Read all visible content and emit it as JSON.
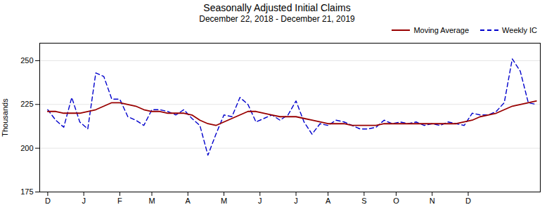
{
  "chart_data": {
    "type": "line",
    "title": "Seasonally Adjusted Initial Claims",
    "subtitle": "December 22, 2018 - December 21, 2019",
    "ylabel": "Thousands",
    "x": [
      0,
      1,
      2,
      3,
      4,
      5,
      6,
      7,
      8,
      9,
      10,
      11,
      12,
      13,
      14,
      15,
      16,
      17,
      18,
      19,
      20,
      21,
      22,
      23,
      24,
      25,
      26,
      27,
      28,
      29,
      30,
      31,
      32,
      33,
      34,
      35,
      36,
      37,
      38,
      39,
      40,
      41,
      42,
      43,
      44,
      45,
      46,
      47,
      48,
      49,
      50,
      51,
      52,
      53,
      54,
      55,
      56,
      57,
      58,
      59,
      60,
      61
    ],
    "xlim": [
      -1,
      61.5
    ],
    "xticks": [
      {
        "value": 0,
        "label": "D"
      },
      {
        "value": 4.5,
        "label": "J"
      },
      {
        "value": 9,
        "label": "F"
      },
      {
        "value": 13,
        "label": "M"
      },
      {
        "value": 17.5,
        "label": "A"
      },
      {
        "value": 22,
        "label": "M"
      },
      {
        "value": 26.5,
        "label": "J"
      },
      {
        "value": 31,
        "label": "J"
      },
      {
        "value": 35,
        "label": "A"
      },
      {
        "value": 39.5,
        "label": "S"
      },
      {
        "value": 43.5,
        "label": "O"
      },
      {
        "value": 48,
        "label": "N"
      },
      {
        "value": 52.5,
        "label": "D"
      }
    ],
    "ylim": [
      175,
      260
    ],
    "yticks": [
      175,
      200,
      225,
      250
    ],
    "grid": true,
    "legend": "upper right",
    "series": [
      {
        "name": "Moving Average",
        "color": "#990000",
        "line_style": "solid",
        "values": [
          221,
          221,
          220,
          220,
          220,
          221,
          222,
          224,
          226,
          226,
          225,
          224,
          222,
          221,
          221,
          220,
          220,
          220,
          219,
          216,
          214,
          213,
          215,
          217,
          219,
          221,
          221,
          220,
          219,
          218,
          218,
          218,
          217,
          216,
          215,
          214,
          214,
          214,
          213,
          213,
          213,
          213,
          214,
          214,
          214,
          214,
          214,
          214,
          214,
          214,
          214,
          214,
          215,
          216,
          218,
          219,
          220,
          222,
          224,
          225,
          226,
          227
        ]
      },
      {
        "name": "Weekly IC",
        "color": "#0000CC",
        "line_style": "dashed",
        "values": [
          222,
          216,
          212,
          229,
          215,
          211,
          243,
          241,
          228,
          228,
          218,
          216,
          213,
          222,
          222,
          221,
          219,
          222,
          217,
          213,
          196,
          208,
          219,
          218,
          229,
          225,
          215,
          217,
          219,
          216,
          219,
          227,
          215,
          208,
          214,
          213,
          216,
          215,
          213,
          211,
          211,
          212,
          216,
          214,
          215,
          214,
          215,
          213,
          214,
          213,
          215,
          214,
          213,
          220,
          219,
          219,
          221,
          226,
          251,
          244,
          226,
          225
        ]
      }
    ]
  }
}
